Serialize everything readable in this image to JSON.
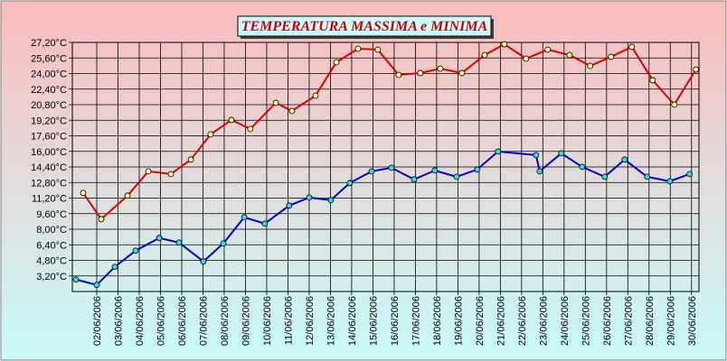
{
  "chart_data": {
    "type": "line",
    "title": "TEMPERATURA MASSIMA e MINIMA",
    "xlim": [
      0.85,
      30.35
    ],
    "ylim": [
      1.6,
      27.2
    ],
    "xticks": [
      {
        "value": 2,
        "label": "02/06/2006"
      },
      {
        "value": 3,
        "label": "03/06/2006"
      },
      {
        "value": 4,
        "label": "04/06/2006"
      },
      {
        "value": 5,
        "label": "05/06/2006"
      },
      {
        "value": 6,
        "label": "06/06/2006"
      },
      {
        "value": 7,
        "label": "07/06/2006"
      },
      {
        "value": 8,
        "label": "08/06/2006"
      },
      {
        "value": 9,
        "label": "09/06/2006"
      },
      {
        "value": 10,
        "label": "10/06/2006"
      },
      {
        "value": 11,
        "label": "11/06/2006"
      },
      {
        "value": 12,
        "label": "12/06/2006"
      },
      {
        "value": 13,
        "label": "13/06/2006"
      },
      {
        "value": 14,
        "label": "14/06/2006"
      },
      {
        "value": 15,
        "label": "15/06/2006"
      },
      {
        "value": 16,
        "label": "16/06/2006"
      },
      {
        "value": 17,
        "label": "17/06/2006"
      },
      {
        "value": 18,
        "label": "18/06/2006"
      },
      {
        "value": 19,
        "label": "19/06/2006"
      },
      {
        "value": 20,
        "label": "20/06/2006"
      },
      {
        "value": 21,
        "label": "21/06/2006"
      },
      {
        "value": 22,
        "label": "22/06/2006"
      },
      {
        "value": 23,
        "label": "23/06/2006"
      },
      {
        "value": 24,
        "label": "24/06/2006"
      },
      {
        "value": 25,
        "label": "25/06/2006"
      },
      {
        "value": 26,
        "label": "26/06/2006"
      },
      {
        "value": 27,
        "label": "27/06/2006"
      },
      {
        "value": 28,
        "label": "28/06/2006"
      },
      {
        "value": 29,
        "label": "29/06/2006"
      },
      {
        "value": 30,
        "label": "30/06/2006"
      }
    ],
    "yticks": [
      {
        "value": 3.2,
        "label": "3,20°C"
      },
      {
        "value": 4.8,
        "label": "4,80°C"
      },
      {
        "value": 6.4,
        "label": "6,40°C"
      },
      {
        "value": 8.0,
        "label": "8,00°C"
      },
      {
        "value": 9.6,
        "label": "9,60°C"
      },
      {
        "value": 11.2,
        "label": "11,20°C"
      },
      {
        "value": 12.8,
        "label": "12,80°C"
      },
      {
        "value": 14.4,
        "label": "14,40°C"
      },
      {
        "value": 16.0,
        "label": "16,00°C"
      },
      {
        "value": 17.6,
        "label": "17,60°C"
      },
      {
        "value": 19.2,
        "label": "19,20°C"
      },
      {
        "value": 20.8,
        "label": "20,80°C"
      },
      {
        "value": 22.4,
        "label": "22,40°C"
      },
      {
        "value": 24.0,
        "label": "24,00°C"
      },
      {
        "value": 25.6,
        "label": "25,60°C"
      },
      {
        "value": 27.2,
        "label": "27,20°C"
      }
    ],
    "grid": true,
    "series": [
      {
        "color": "#e00000",
        "marker_color": "#ffff99",
        "x": [
          1.36,
          2.21,
          3.45,
          4.43,
          5.49,
          6.43,
          7.36,
          8.34,
          9.23,
          10.43,
          11.19,
          12.3,
          13.28,
          14.3,
          15.23,
          16.21,
          17.23,
          18.17,
          19.19,
          20.26,
          21.19,
          22.21,
          23.23,
          24.26,
          25.23,
          26.21,
          27.19,
          28.17,
          29.19,
          30.21
        ],
        "values": [
          11.73,
          9.04,
          11.45,
          13.95,
          13.67,
          15.16,
          17.75,
          19.23,
          18.31,
          20.99,
          20.15,
          21.73,
          25.16,
          26.55,
          26.46,
          23.86,
          24.05,
          24.51,
          24.05,
          25.9,
          27.01,
          25.53,
          26.46,
          25.9,
          24.79,
          25.72,
          26.74,
          23.31,
          20.81,
          24.42
        ]
      },
      {
        "color": "#0000cc",
        "marker_color": "#33dddd",
        "x": [
          1.02,
          2.0,
          2.85,
          3.83,
          4.94,
          5.87,
          7.02,
          7.96,
          8.94,
          9.91,
          11.06,
          12.0,
          13.02,
          13.91,
          14.94,
          15.87,
          16.94,
          17.91,
          18.94,
          19.91,
          20.89,
          22.68,
          22.85,
          23.87,
          24.85,
          25.91,
          26.85,
          27.91,
          28.98,
          29.91
        ],
        "values": [
          2.83,
          2.28,
          4.13,
          5.8,
          7.1,
          6.63,
          4.69,
          6.54,
          9.23,
          8.58,
          10.43,
          11.26,
          10.99,
          12.75,
          13.95,
          14.32,
          13.12,
          14.04,
          13.39,
          14.14,
          15.99,
          15.62,
          13.95,
          15.8,
          14.41,
          13.39,
          15.16,
          13.39,
          12.93,
          13.67
        ]
      }
    ]
  }
}
